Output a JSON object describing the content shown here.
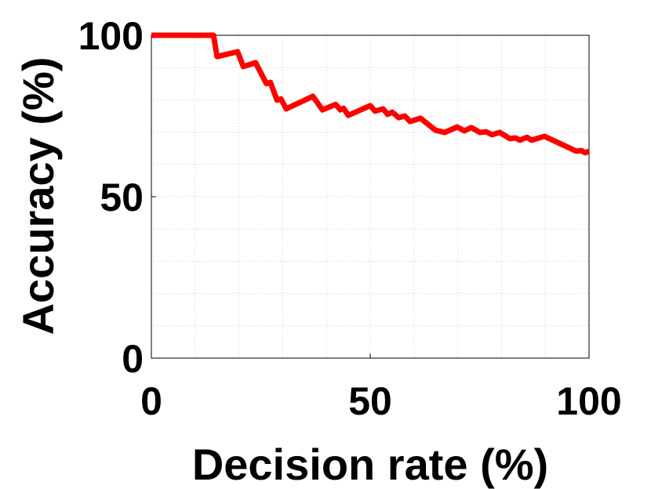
{
  "chart_data": {
    "type": "line",
    "xlabel": "Decision rate (%)",
    "ylabel": "Accuracy (%)",
    "xlim": [
      0,
      100
    ],
    "ylim": [
      0,
      100
    ],
    "xticks": [
      0,
      50,
      100
    ],
    "yticks": [
      0,
      50,
      100
    ],
    "xminorticks": [
      10,
      20,
      30,
      40,
      60,
      70,
      80,
      90
    ],
    "yminorticks": [
      10,
      20,
      30,
      40,
      60,
      70,
      80,
      90
    ],
    "grid": true,
    "series": [
      {
        "color": "#ff0000",
        "x": [
          0,
          14.2,
          15,
          19.7,
          21,
          23.8,
          26.3,
          27.2,
          28.7,
          29.6,
          30.8,
          36.9,
          39.1,
          42.1,
          43.2,
          43.9,
          45,
          50,
          51.1,
          52.9,
          54,
          55,
          56.5,
          57.9,
          59.1,
          61.5,
          64.9,
          67,
          69.9,
          71.5,
          73.1,
          75.1,
          76.5,
          77.8,
          79.6,
          81.9,
          83.2,
          84.2,
          85.8,
          86.9,
          89.8,
          97.1,
          98.2,
          99.1,
          100
        ],
        "values": [
          100,
          100,
          93.4,
          94.9,
          90.3,
          91.5,
          85,
          85.4,
          79.9,
          80.3,
          77.2,
          81.1,
          76.9,
          78.6,
          76.9,
          77.4,
          75.2,
          78.2,
          76.5,
          77.2,
          75.5,
          76.2,
          74.5,
          75,
          73.3,
          74.3,
          70.6,
          69.9,
          71.6,
          70.4,
          71.4,
          69.9,
          70.1,
          69.2,
          69.9,
          68,
          68.2,
          67.5,
          68.4,
          67.5,
          68.7,
          64.1,
          64.3,
          63.6,
          64.1
        ]
      }
    ]
  }
}
